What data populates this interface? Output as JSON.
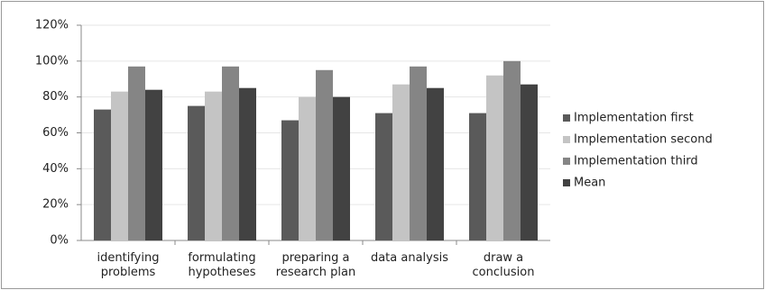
{
  "chart_data": {
    "type": "bar",
    "categories": [
      "identifying problems",
      "formulating hypotheses",
      "preparing a research plan",
      "data analysis",
      "draw a conclusion"
    ],
    "series": [
      {
        "name": "Implementation first",
        "color": "#5a5a5a",
        "values": [
          73,
          75,
          67,
          71,
          71
        ]
      },
      {
        "name": "Implementation second",
        "color": "#c4c4c4",
        "values": [
          83,
          83,
          80,
          87,
          92
        ]
      },
      {
        "name": "Implementation third",
        "color": "#858585",
        "values": [
          97,
          97,
          95,
          97,
          100
        ]
      },
      {
        "name": "Mean",
        "color": "#424242",
        "values": [
          84,
          85,
          80,
          85,
          87
        ]
      }
    ],
    "ylim": [
      0,
      120
    ],
    "yticks": [
      {
        "value": 0,
        "label": "0%"
      },
      {
        "value": 20,
        "label": "20%"
      },
      {
        "value": 40,
        "label": "40%"
      },
      {
        "value": 60,
        "label": "60%"
      },
      {
        "value": 80,
        "label": "80%"
      },
      {
        "value": 100,
        "label": "100%"
      },
      {
        "value": 120,
        "label": "120%"
      }
    ],
    "grid": true,
    "legend": "right"
  }
}
